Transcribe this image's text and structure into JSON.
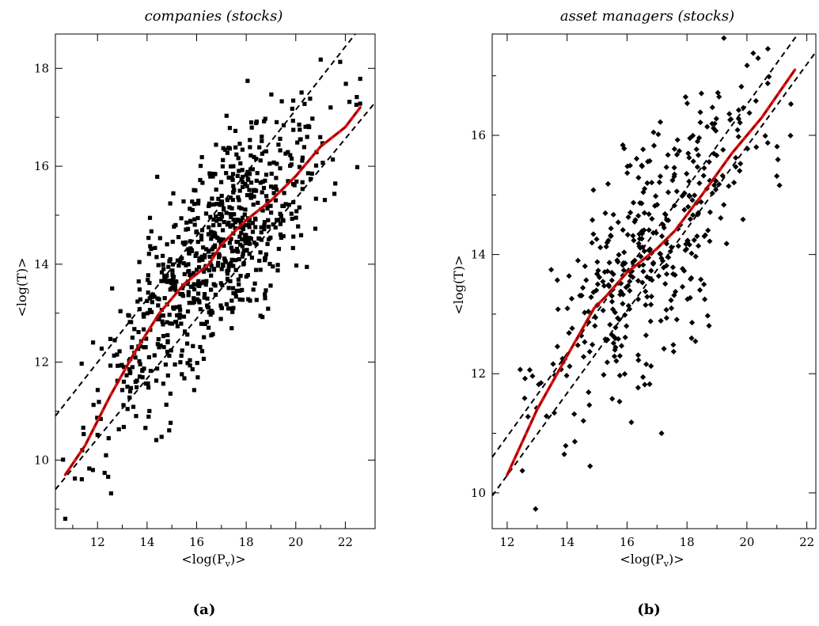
{
  "chart_data": [
    {
      "type": "scatter",
      "panel": "(a)",
      "title": "companies (stocks)",
      "xlabel": "<log(P_v)>",
      "ylabel": "<log(T)>",
      "xlim": [
        10.3,
        23.2
      ],
      "ylim": [
        8.6,
        18.7
      ],
      "xticks": [
        12,
        14,
        16,
        18,
        20,
        22
      ],
      "yticks": [
        10,
        12,
        14,
        16,
        18
      ],
      "marker": "square",
      "colors": {
        "points": "#000000",
        "fit": "#dd1111",
        "dashed": "#000000"
      },
      "grid": false,
      "legend": "none",
      "points": {
        "count": 800,
        "seed": 17,
        "x_range": [
          10.6,
          22.6
        ],
        "note": "dense scatter of stocks around the fitted curve, spread roughly 1 unit in <log(T)>"
      },
      "dashed_lines": [
        {
          "x": [
            10.3,
            22.4
          ],
          "y": [
            10.9,
            18.7
          ]
        },
        {
          "x": [
            10.3,
            23.2
          ],
          "y": [
            9.4,
            17.3
          ]
        }
      ],
      "fit_curve": {
        "x": [
          10.7,
          11.5,
          12.5,
          13.5,
          14.5,
          15.5,
          16.5,
          17.0,
          18.0,
          19.0,
          20.0,
          21.0,
          22.0,
          22.6
        ],
        "y": [
          9.7,
          10.3,
          11.3,
          12.2,
          13.0,
          13.6,
          14.0,
          14.4,
          14.9,
          15.3,
          15.8,
          16.4,
          16.8,
          17.2
        ]
      }
    },
    {
      "type": "scatter",
      "panel": "(b)",
      "title": "asset managers (stocks)",
      "xlabel": "<log(P_v)>",
      "ylabel": "<log(T)>",
      "xlim": [
        11.5,
        22.3
      ],
      "ylim": [
        9.4,
        17.7
      ],
      "xticks": [
        12,
        14,
        16,
        18,
        20,
        22
      ],
      "yticks": [
        10,
        12,
        14,
        16
      ],
      "marker": "diamond",
      "colors": {
        "points": "#000000",
        "fit": "#dd1111",
        "dashed": "#000000"
      },
      "grid": false,
      "legend": "none",
      "points": {
        "count": 420,
        "seed": 5,
        "x_range": [
          11.9,
          21.8
        ],
        "note": "scatter of asset managers around the fitted curve, denser near <log(P_v)> 16-18"
      },
      "dashed_lines": [
        {
          "x": [
            11.5,
            21.7
          ],
          "y": [
            10.6,
            17.7
          ]
        },
        {
          "x": [
            11.5,
            22.3
          ],
          "y": [
            9.95,
            17.4
          ]
        }
      ],
      "fit_curve": {
        "x": [
          12.0,
          13.0,
          14.0,
          14.9,
          15.3,
          16.0,
          17.0,
          17.6,
          18.5,
          19.5,
          20.5,
          21.6
        ],
        "y": [
          10.3,
          11.4,
          12.3,
          13.1,
          13.3,
          13.7,
          14.1,
          14.4,
          15.0,
          15.7,
          16.3,
          17.1
        ]
      }
    }
  ],
  "panels": {
    "a": {
      "title": "companies (stocks)",
      "xlabel": "<log(P",
      "xlabel_sub": "v",
      "xlabel_end": ")>",
      "ylabel": "<log(T)>",
      "caption": "(a)"
    },
    "b": {
      "title": "asset managers (stocks)",
      "xlabel": "<log(P",
      "xlabel_sub": "v",
      "xlabel_end": ")>",
      "ylabel": "<log(T)>",
      "caption": "(b)"
    }
  }
}
